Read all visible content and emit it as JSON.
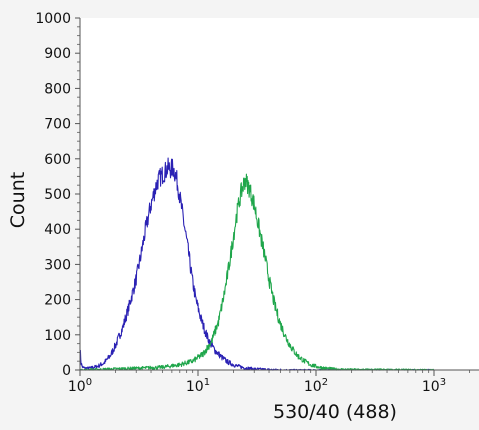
{
  "chart_data": {
    "type": "line",
    "title": "",
    "xlabel": "530/40 (488)",
    "ylabel": "Count",
    "x_scale": "log",
    "xlim": [
      1,
      1000
    ],
    "ylim": [
      0,
      1000
    ],
    "x_ticks": [
      {
        "value": 1,
        "base": "10",
        "exp": "0"
      },
      {
        "value": 10,
        "base": "10",
        "exp": "1"
      },
      {
        "value": 100,
        "base": "10",
        "exp": "2"
      },
      {
        "value": 1000,
        "base": "10",
        "exp": "3"
      }
    ],
    "y_ticks": [
      "0",
      "100",
      "200",
      "300",
      "400",
      "500",
      "600",
      "700",
      "800",
      "900",
      "1000"
    ],
    "grid": false,
    "legend": "none",
    "series": [
      {
        "color": "#2b22b4",
        "x": [
          1.0,
          1.02,
          1.05,
          1.1,
          1.2,
          1.4,
          1.6,
          1.8,
          2.0,
          2.3,
          2.6,
          3.0,
          3.3,
          3.6,
          4.0,
          4.3,
          4.6,
          5.0,
          5.3,
          5.6,
          5.9,
          6.1,
          6.3,
          6.5,
          6.8,
          7.1,
          7.5,
          8.0,
          8.5,
          9.0,
          9.6,
          10.5,
          11.5,
          12.5,
          14.0,
          16.0,
          18.0,
          21.0,
          25.0,
          30.0,
          40.0,
          60.0,
          100.0,
          1000.0
        ],
        "y": [
          65,
          20,
          8,
          5,
          5,
          10,
          20,
          40,
          70,
          120,
          180,
          260,
          330,
          400,
          470,
          510,
          540,
          555,
          565,
          575,
          570,
          575,
          565,
          550,
          520,
          480,
          430,
          370,
          310,
          250,
          200,
          150,
          110,
          80,
          55,
          35,
          22,
          12,
          6,
          3,
          1,
          0,
          0,
          0
        ]
      },
      {
        "color": "#1fa64b",
        "x": [
          1.0,
          3.0,
          5.0,
          7.0,
          9.0,
          11.0,
          13.0,
          15.0,
          17.0,
          19.0,
          21.0,
          23.0,
          25.0,
          27.0,
          30.0,
          33.0,
          37.0,
          41.0,
          45.0,
          50.0,
          56.0,
          63.0,
          70.0,
          80.0,
          90.0,
          105.0,
          120.0,
          150.0,
          200.0,
          1000.0
        ],
        "y": [
          0,
          5,
          8,
          15,
          25,
          45,
          80,
          140,
          230,
          330,
          430,
          500,
          540,
          520,
          470,
          400,
          320,
          240,
          180,
          130,
          90,
          60,
          40,
          25,
          15,
          8,
          5,
          2,
          1,
          0
        ]
      }
    ]
  }
}
